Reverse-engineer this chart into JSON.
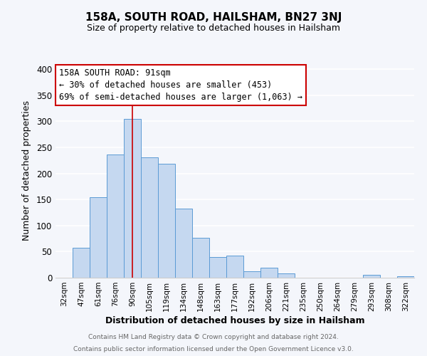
{
  "title": "158A, SOUTH ROAD, HAILSHAM, BN27 3NJ",
  "subtitle": "Size of property relative to detached houses in Hailsham",
  "xlabel": "Distribution of detached houses by size in Hailsham",
  "ylabel": "Number of detached properties",
  "categories": [
    "32sqm",
    "47sqm",
    "61sqm",
    "76sqm",
    "90sqm",
    "105sqm",
    "119sqm",
    "134sqm",
    "148sqm",
    "163sqm",
    "177sqm",
    "192sqm",
    "206sqm",
    "221sqm",
    "235sqm",
    "250sqm",
    "264sqm",
    "279sqm",
    "293sqm",
    "308sqm",
    "322sqm"
  ],
  "values": [
    0,
    57,
    155,
    237,
    305,
    231,
    219,
    133,
    77,
    40,
    42,
    12,
    19,
    8,
    0,
    0,
    0,
    0,
    5,
    0,
    3
  ],
  "bar_color": "#c5d8f0",
  "bar_edge_color": "#5b9bd5",
  "bar_width": 1.0,
  "vline_x_idx": 4,
  "vline_color": "#cc0000",
  "annotation_line1": "158A SOUTH ROAD: 91sqm",
  "annotation_line2": "← 30% of detached houses are smaller (453)",
  "annotation_line3": "69% of semi-detached houses are larger (1,063) →",
  "annotation_box_color": "#ffffff",
  "annotation_box_edge": "#cc0000",
  "ylim": [
    0,
    410
  ],
  "yticks": [
    0,
    50,
    100,
    150,
    200,
    250,
    300,
    350,
    400
  ],
  "footer1": "Contains HM Land Registry data © Crown copyright and database right 2024.",
  "footer2": "Contains public sector information licensed under the Open Government Licence v3.0.",
  "bg_color": "#f4f6fb",
  "plot_bg_color": "#f4f6fb"
}
